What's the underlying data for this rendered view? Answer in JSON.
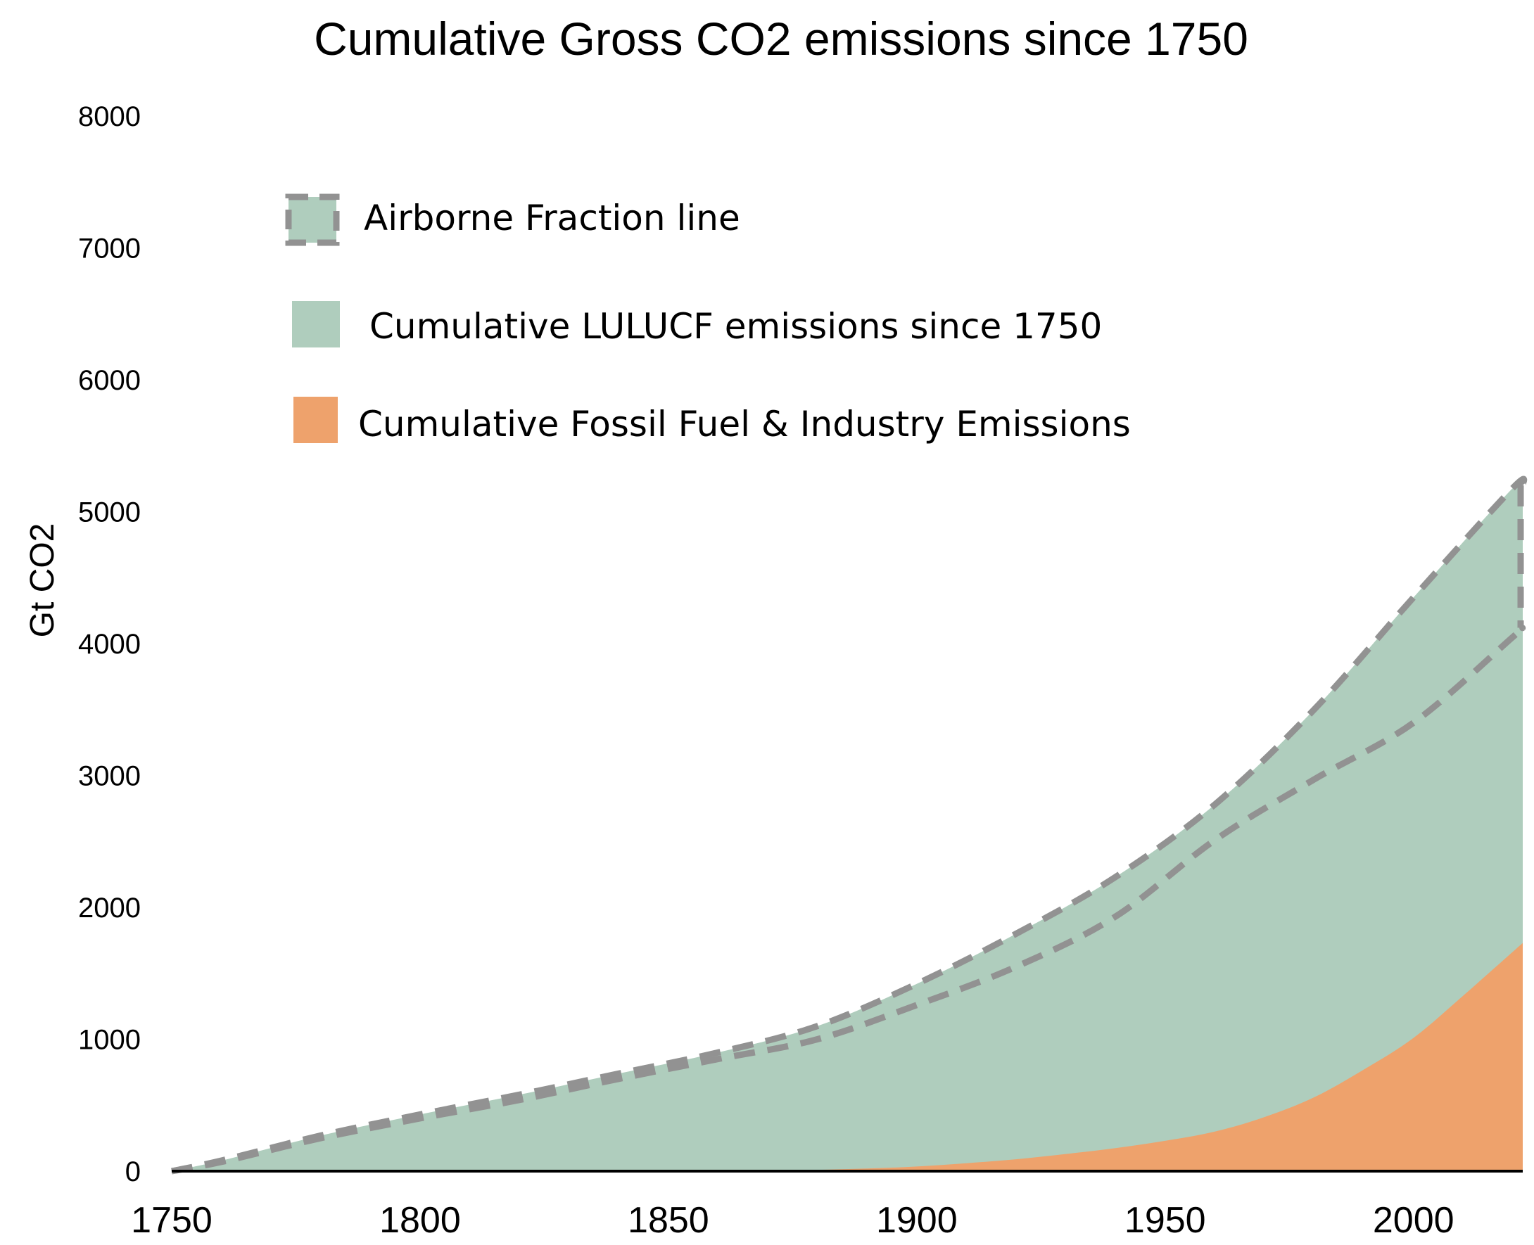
{
  "chart_data": {
    "type": "area",
    "title": "Cumulative Gross CO2 emissions since 1750",
    "xlabel": "",
    "ylabel": "Gt CO2",
    "xlim": [
      1750,
      2022
    ],
    "ylim": [
      0,
      8000
    ],
    "x_ticks": [
      "1750",
      "1800",
      "1850",
      "1900",
      "1950",
      "2000"
    ],
    "y_ticks": [
      "0",
      "1000",
      "2000",
      "3000",
      "4000",
      "5000",
      "6000",
      "7000",
      "8000"
    ],
    "grid": false,
    "legend_position": "top-left",
    "colors": {
      "lulucf": "#afcdbd",
      "fossil": "#eea26c",
      "dashed": "#929292",
      "axis": "#000000"
    },
    "legend": [
      {
        "key": "airborne",
        "label": "Airborne Fraction line"
      },
      {
        "key": "lulucf",
        "label": "Cumulative LULUCF emissions since 1750"
      },
      {
        "key": "fossil",
        "label": "Cumulative Fossil Fuel & Industry Emissions"
      }
    ],
    "series": [
      {
        "name": "Cumulative Fossil Fuel & Industry Emissions",
        "key": "fossil",
        "x": [
          1750,
          1850,
          1870,
          1880,
          1890,
          1900,
          1910,
          1920,
          1930,
          1940,
          1950,
          1960,
          1970,
          1980,
          1990,
          2000,
          2010,
          2022
        ],
        "y": [
          0,
          0,
          5,
          10,
          20,
          35,
          60,
          90,
          130,
          175,
          230,
          300,
          410,
          560,
          770,
          1010,
          1330,
          1730
        ]
      },
      {
        "name": "Cumulative LULUCF emissions since 1750",
        "key": "lulucf",
        "x": [
          1750,
          1760,
          1780,
          1800,
          1820,
          1840,
          1860,
          1880,
          1900,
          1920,
          1940,
          1960,
          1980,
          2000,
          2020,
          2022
        ],
        "y": [
          0,
          80,
          270,
          430,
          580,
          740,
          900,
          1100,
          1420,
          1800,
          2230,
          2780,
          3500,
          4350,
          5180,
          5200
        ]
      },
      {
        "name": "Airborne Fraction line",
        "key": "airborne",
        "x": [
          1750,
          1760,
          1780,
          1800,
          1820,
          1840,
          1860,
          1880,
          1900,
          1920,
          1940,
          1960,
          1980,
          2000,
          2020,
          2022
        ],
        "y": [
          0,
          70,
          250,
          400,
          540,
          700,
          850,
          1000,
          1260,
          1550,
          1930,
          2510,
          2970,
          3400,
          4050,
          4120
        ]
      }
    ]
  }
}
